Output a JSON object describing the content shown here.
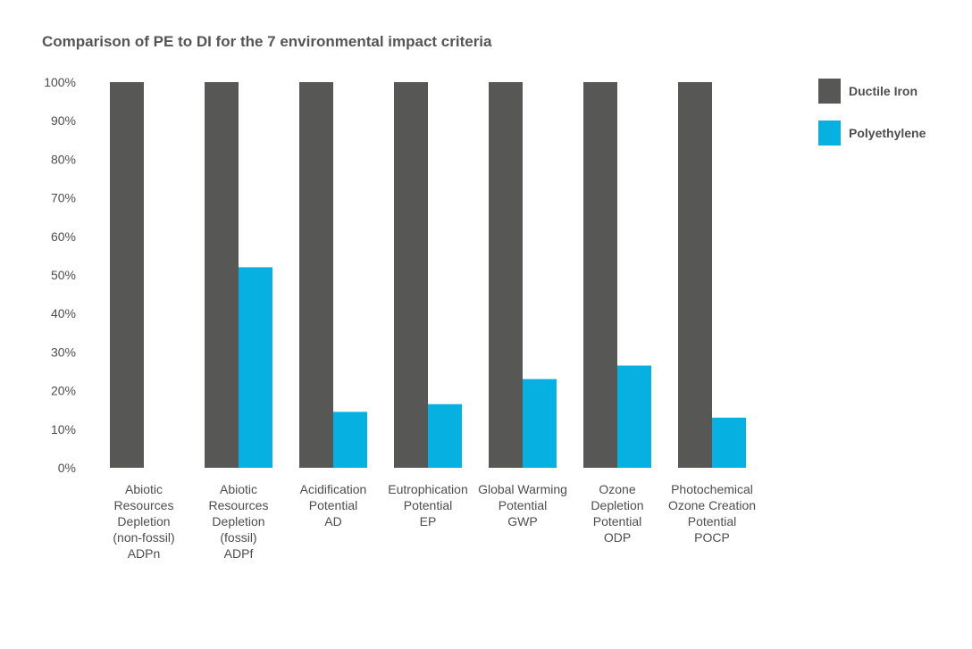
{
  "chart_data": {
    "type": "bar",
    "title": "Comparison of PE to DI for the 7 environmental impact criteria",
    "xlabel": "",
    "ylabel": "",
    "ylim": [
      0,
      100
    ],
    "yticks": [
      "0%",
      "10%",
      "20%",
      "30%",
      "40%",
      "50%",
      "60%",
      "70%",
      "80%",
      "90%",
      "100%"
    ],
    "grid": false,
    "legend_position": "top-right",
    "categories": [
      [
        "Abiotic",
        "Resources",
        "Depletion",
        "(non-fossil)",
        "ADPn"
      ],
      [
        "Abiotic",
        "Resources",
        "Depletion",
        "(fossil)",
        "ADPf"
      ],
      [
        "Acidification",
        "Potential",
        "AD"
      ],
      [
        "Eutrophication",
        "Potential",
        "EP"
      ],
      [
        "Global Warming",
        "Potential",
        "GWP"
      ],
      [
        "Ozone",
        "Depletion",
        "Potential",
        "ODP"
      ],
      [
        "Photochemical",
        "Ozone Creation",
        "Potential",
        "POCP"
      ]
    ],
    "series": [
      {
        "name": "Ductile Iron",
        "color": "#575756",
        "values": [
          100,
          100,
          100,
          100,
          100,
          100,
          100
        ]
      },
      {
        "name": "Polyethylene",
        "color": "#06b1e2",
        "values": [
          0,
          52,
          14.5,
          16.5,
          23,
          26.5,
          13
        ]
      }
    ]
  }
}
